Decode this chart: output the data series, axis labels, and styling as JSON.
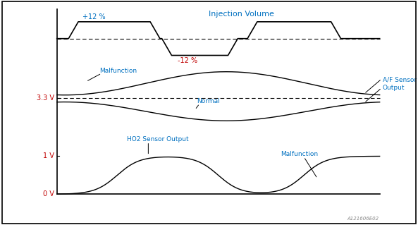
{
  "title": "Injection Volume",
  "title_color": "#0070C0",
  "label_33v": "3.3 V",
  "label_1v": "1 V",
  "label_0v": "0 V",
  "label_color": "#C00000",
  "annotation_color_blue": "#0070C0",
  "annotation_color_red": "#C00000",
  "annotation_color_black": "#000000",
  "watermark": "A121606E02",
  "bg_color": "#FFFFFF",
  "border_color": "#000000",
  "plus12_label": "+12 %",
  "minus12_label": "-12 %",
  "malfunction_label": "Malfunction",
  "normal_label": "Normal",
  "af_label": "A/F Sensor\nOutput",
  "ho2_label": "HO2 Sensor Output",
  "malfunction2_label": "Malfunction"
}
